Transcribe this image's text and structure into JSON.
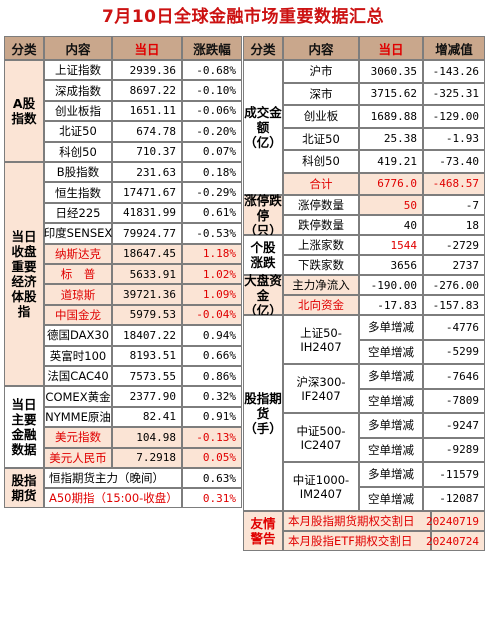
{
  "title": "7月10日全球金融市场重要数据汇总",
  "left": {
    "headers": [
      "分类",
      "内容",
      "当日",
      "涨跌幅"
    ],
    "groups": [
      {
        "name": "A股指数",
        "rows": [
          {
            "item": "上证指数",
            "value": "2939.36",
            "change": "-0.68%"
          },
          {
            "item": "深成指数",
            "value": "8697.22",
            "change": "-0.10%"
          },
          {
            "item": "创业板指",
            "value": "1651.11",
            "change": "-0.06%"
          },
          {
            "item": "北证50",
            "value": "674.78",
            "change": "-0.20%"
          },
          {
            "item": "科创50",
            "value": "710.37",
            "change": "0.07%"
          }
        ]
      },
      {
        "name": "当日收盘重要经济体股指",
        "rows": [
          {
            "item": "B股指数",
            "value": "231.63",
            "change": "0.18%"
          },
          {
            "item": "恒生指数",
            "value": "17471.67",
            "change": "-0.29%"
          },
          {
            "item": "日经225",
            "value": "41831.99",
            "change": "0.61%"
          },
          {
            "item": "印度SENSEX",
            "value": "79924.77",
            "change": "-0.53%"
          },
          {
            "item": "纳斯达克",
            "value": "18647.45",
            "change": "1.18%"
          },
          {
            "item": "标　普",
            "value": "5633.91",
            "change": "1.02%"
          },
          {
            "item": "道琼斯",
            "value": "39721.36",
            "change": "1.09%"
          },
          {
            "item": "中国金龙",
            "value": "5979.53",
            "change": "-0.04%"
          },
          {
            "item": "德国DAX30",
            "value": "18407.22",
            "change": "0.94%"
          },
          {
            "item": "英富时100",
            "value": "8193.51",
            "change": "0.66%"
          },
          {
            "item": "法国CAC40",
            "value": "7573.55",
            "change": "0.86%"
          }
        ]
      },
      {
        "name": "当日主要金融数据",
        "rows": [
          {
            "item": "COMEX黄金",
            "value": "2377.90",
            "change": "0.32%"
          },
          {
            "item": "NYMME原油",
            "value": "82.41",
            "change": "0.91%"
          },
          {
            "item": "美元指数",
            "value": "104.98",
            "change": "-0.13%"
          },
          {
            "item": "美元人民币",
            "value": "7.2918",
            "change": "0.05%"
          }
        ]
      },
      {
        "name": "股指期货",
        "rows": [
          {
            "item": "恒指期货主力（晚间）",
            "change": "0.63%"
          },
          {
            "item": "A50期指（15:00-收盘）",
            "change": "0.31%"
          }
        ]
      }
    ]
  },
  "right": {
    "headers": [
      "分类",
      "内容",
      "当日",
      "增减值"
    ],
    "turnover": {
      "name": "成交金额（亿）",
      "rows": [
        {
          "item": "沪市",
          "value": "3060.35",
          "delta": "-143.26"
        },
        {
          "item": "深市",
          "value": "3715.62",
          "delta": "-325.31"
        },
        {
          "item": "创业板",
          "value": "1689.88",
          "delta": "-129.00"
        },
        {
          "item": "北证50",
          "value": "25.38",
          "delta": "-1.93"
        },
        {
          "item": "科创50",
          "value": "419.21",
          "delta": "-73.40"
        },
        {
          "item": "合计",
          "value": "6776.0",
          "delta": "-468.57"
        }
      ]
    },
    "limit": {
      "name": "涨停跌停（只）",
      "rows": [
        {
          "item": "涨停数量",
          "value": "50",
          "delta": "-7"
        },
        {
          "item": "跌停数量",
          "value": "40",
          "delta": "18"
        }
      ]
    },
    "stocks": {
      "name": "个股涨跌",
      "rows": [
        {
          "item": "上涨家数",
          "value": "1544",
          "delta": "-2729"
        },
        {
          "item": "下跌家数",
          "value": "3656",
          "delta": "2737"
        }
      ]
    },
    "flow": {
      "name": "大盘资金（亿）",
      "rows": [
        {
          "item": "主力净流入",
          "value": "-190.00",
          "delta": "-276.00"
        },
        {
          "item": "北向资金",
          "value": "-17.83",
          "delta": "-157.83"
        }
      ]
    },
    "futures": {
      "name": "股指期货（手）",
      "contracts": [
        {
          "name": "上证50-IH2407",
          "rows": [
            {
              "item": "多单增减",
              "delta": "-4776"
            },
            {
              "item": "空单增减",
              "delta": "-5299"
            }
          ]
        },
        {
          "name": "沪深300-IF2407",
          "rows": [
            {
              "item": "多单增减",
              "delta": "-7646"
            },
            {
              "item": "空单增减",
              "delta": "-7809"
            }
          ]
        },
        {
          "name": "中证500-IC2407",
          "rows": [
            {
              "item": "多单增减",
              "delta": "-9247"
            },
            {
              "item": "空单增减",
              "delta": "-9289"
            }
          ]
        },
        {
          "name": "中证1000-IM2407",
          "rows": [
            {
              "item": "多单增减",
              "delta": "-11579"
            },
            {
              "item": "空单增减",
              "delta": "-12087"
            }
          ]
        }
      ]
    },
    "notice": {
      "name": "友情警告",
      "rows": [
        {
          "item": "本月股指期货期权交割日",
          "date": "20240719"
        },
        {
          "item": "本月股指ETF期权交割日",
          "date": "20240724"
        }
      ]
    }
  }
}
